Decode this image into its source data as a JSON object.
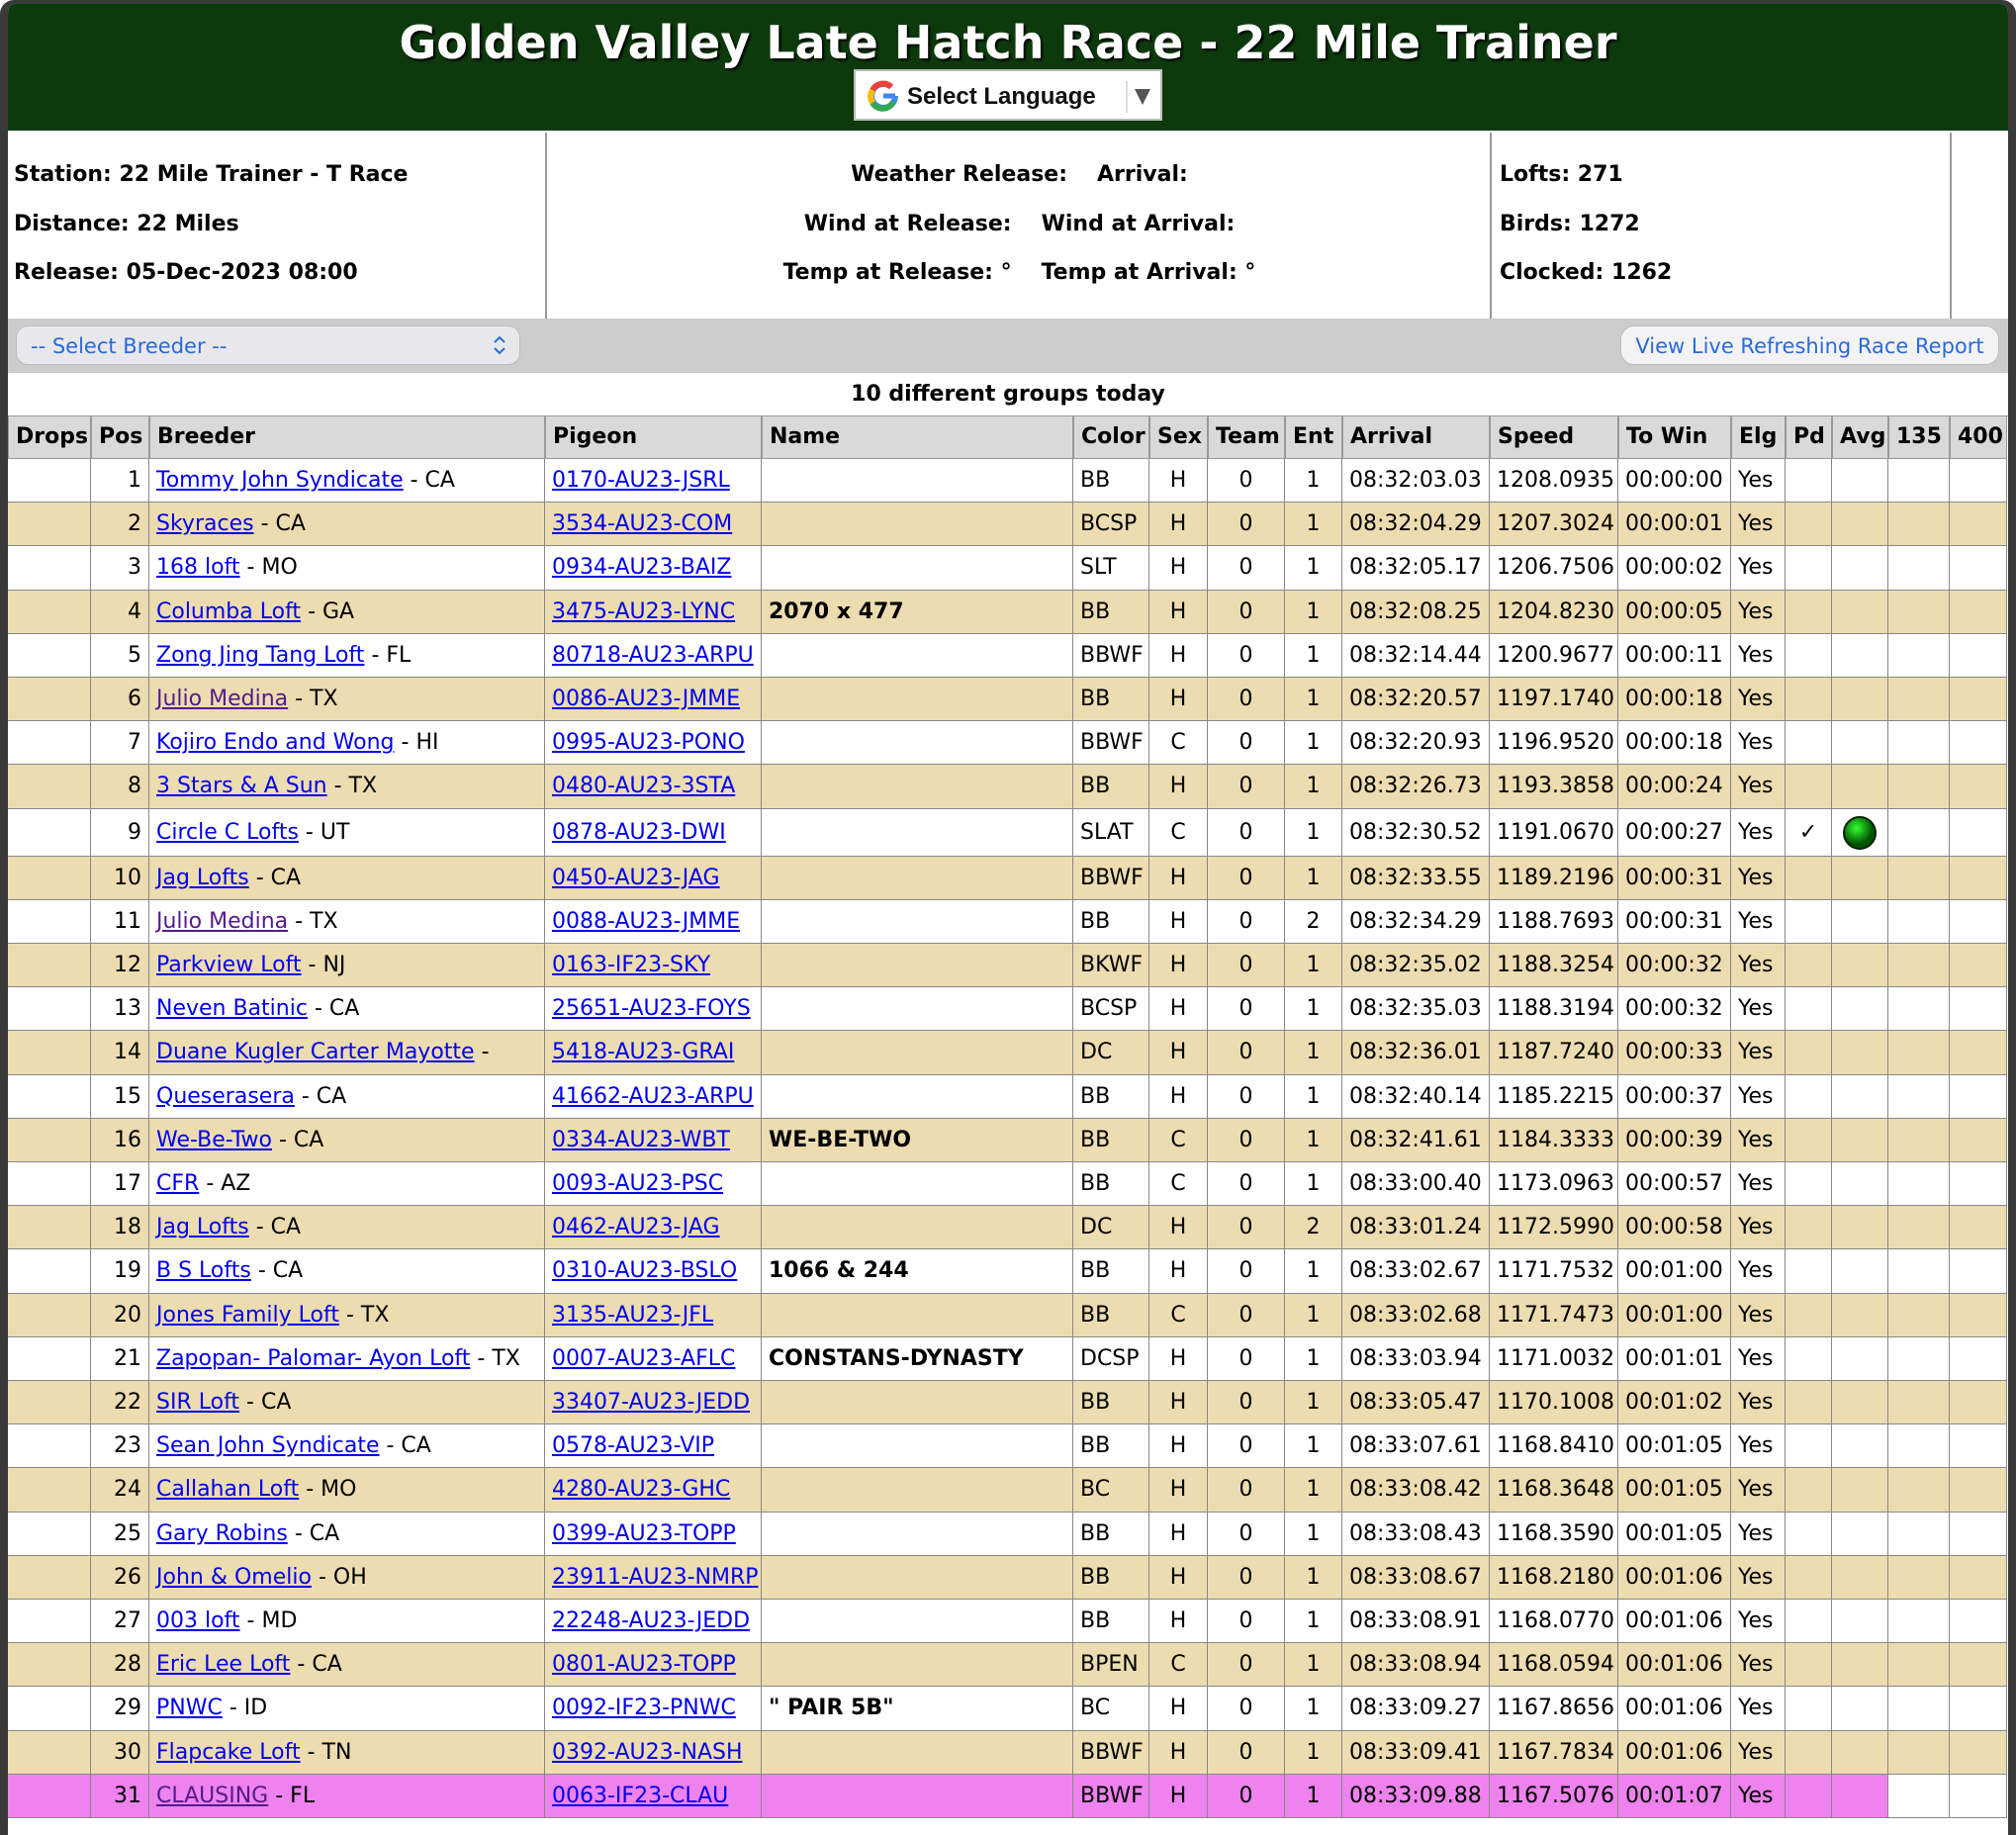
{
  "header": {
    "title": "Golden Valley Late Hatch Race - 22 Mile Trainer",
    "language_button": "Select Language"
  },
  "info": {
    "left": [
      "Station: 22 Mile Trainer - T Race",
      "Distance: 22 Miles",
      "Release: 05-Dec-2023 08:00"
    ],
    "middle": [
      [
        "Weather Release:",
        "Arrival:"
      ],
      [
        "Wind at Release:",
        "Wind at Arrival:"
      ],
      [
        "Temp at Release: °",
        "Temp at Arrival: °"
      ]
    ],
    "right": [
      "Lofts: 271",
      "Birds: 1272",
      "Clocked: 1262"
    ]
  },
  "controls": {
    "breeder_select": "-- Select Breeder --",
    "live_report_button": "View Live Refreshing Race Report"
  },
  "table": {
    "caption": "10 different groups today",
    "headers": [
      "Drops",
      "Pos",
      "Breeder",
      "Pigeon",
      "Name",
      "Color",
      "Sex",
      "Team",
      "Ent",
      "Arrival",
      "Speed",
      "To Win",
      "Elg",
      "Pd",
      "Avg",
      "135",
      "400"
    ],
    "rows": [
      {
        "pos": 1,
        "breeder": "Tommy John Syndicate",
        "state": "- CA",
        "pigeon": "0170-AU23-JSRL",
        "color": "BB",
        "sex": "H",
        "team": "0",
        "ent": "1",
        "arrival": "08:32:03.03",
        "speed": "1208.0935",
        "to_win": "00:00:00",
        "elg": "Yes"
      },
      {
        "pos": 2,
        "breeder": "Skyraces",
        "state": "- CA",
        "pigeon": "3534-AU23-COM",
        "color": "BCSP",
        "sex": "H",
        "team": "0",
        "ent": "1",
        "arrival": "08:32:04.29",
        "speed": "1207.3024",
        "to_win": "00:00:01",
        "elg": "Yes"
      },
      {
        "pos": 3,
        "breeder": "168 loft",
        "state": "- MO",
        "pigeon": "0934-AU23-BAIZ",
        "color": "SLT",
        "sex": "H",
        "team": "0",
        "ent": "1",
        "arrival": "08:32:05.17",
        "speed": "1206.7506",
        "to_win": "00:00:02",
        "elg": "Yes"
      },
      {
        "pos": 4,
        "breeder": "Columba Loft",
        "state": "- GA",
        "pigeon": "3475-AU23-LYNC",
        "name": "2070 x 477",
        "color": "BB",
        "sex": "H",
        "team": "0",
        "ent": "1",
        "arrival": "08:32:08.25",
        "speed": "1204.8230",
        "to_win": "00:00:05",
        "elg": "Yes"
      },
      {
        "pos": 5,
        "breeder": "Zong Jing Tang Loft",
        "state": "- FL",
        "pigeon": "80718-AU23-ARPU",
        "color": "BBWF",
        "sex": "H",
        "team": "0",
        "ent": "1",
        "arrival": "08:32:14.44",
        "speed": "1200.9677",
        "to_win": "00:00:11",
        "elg": "Yes"
      },
      {
        "pos": 6,
        "breeder": "Julio Medina",
        "visited": true,
        "state": "- TX",
        "pigeon": "0086-AU23-JMME",
        "color": "BB",
        "sex": "H",
        "team": "0",
        "ent": "1",
        "arrival": "08:32:20.57",
        "speed": "1197.1740",
        "to_win": "00:00:18",
        "elg": "Yes"
      },
      {
        "pos": 7,
        "breeder": "Kojiro Endo and Wong",
        "state": "- HI",
        "pigeon": "0995-AU23-PONO",
        "color": "BBWF",
        "sex": "C",
        "team": "0",
        "ent": "1",
        "arrival": "08:32:20.93",
        "speed": "1196.9520",
        "to_win": "00:00:18",
        "elg": "Yes"
      },
      {
        "pos": 8,
        "breeder": "3 Stars & A Sun",
        "state": "- TX",
        "pigeon": "0480-AU23-3STA",
        "color": "BB",
        "sex": "H",
        "team": "0",
        "ent": "1",
        "arrival": "08:32:26.73",
        "speed": "1193.3858",
        "to_win": "00:00:24",
        "elg": "Yes"
      },
      {
        "pos": 9,
        "breeder": "Circle C Lofts",
        "state": "- UT",
        "pigeon": "0878-AU23-DWI",
        "color": "SLAT",
        "sex": "C",
        "team": "0",
        "ent": "1",
        "arrival": "08:32:30.52",
        "speed": "1191.0670",
        "to_win": "00:00:27",
        "elg": "Yes",
        "pd": "✓",
        "avg_marker": true
      },
      {
        "pos": 10,
        "breeder": "Jag Lofts",
        "state": "- CA",
        "pigeon": "0450-AU23-JAG",
        "color": "BBWF",
        "sex": "H",
        "team": "0",
        "ent": "1",
        "arrival": "08:32:33.55",
        "speed": "1189.2196",
        "to_win": "00:00:31",
        "elg": "Yes"
      },
      {
        "pos": 11,
        "breeder": "Julio Medina",
        "visited": true,
        "state": "- TX",
        "pigeon": "0088-AU23-JMME",
        "color": "BB",
        "sex": "H",
        "team": "0",
        "ent": "2",
        "arrival": "08:32:34.29",
        "speed": "1188.7693",
        "to_win": "00:00:31",
        "elg": "Yes"
      },
      {
        "pos": 12,
        "breeder": "Parkview Loft",
        "state": "- NJ",
        "pigeon": "0163-IF23-SKY",
        "color": "BKWF",
        "sex": "H",
        "team": "0",
        "ent": "1",
        "arrival": "08:32:35.02",
        "speed": "1188.3254",
        "to_win": "00:00:32",
        "elg": "Yes"
      },
      {
        "pos": 13,
        "breeder": "Neven Batinic",
        "state": "- CA",
        "pigeon": "25651-AU23-FOYS",
        "color": "BCSP",
        "sex": "H",
        "team": "0",
        "ent": "1",
        "arrival": "08:32:35.03",
        "speed": "1188.3194",
        "to_win": "00:00:32",
        "elg": "Yes"
      },
      {
        "pos": 14,
        "breeder": "Duane Kugler Carter Mayotte",
        "state": "-",
        "pigeon": "5418-AU23-GRAI",
        "color": "DC",
        "sex": "H",
        "team": "0",
        "ent": "1",
        "arrival": "08:32:36.01",
        "speed": "1187.7240",
        "to_win": "00:00:33",
        "elg": "Yes"
      },
      {
        "pos": 15,
        "breeder": "Queserasera",
        "state": "- CA",
        "pigeon": "41662-AU23-ARPU",
        "color": "BB",
        "sex": "H",
        "team": "0",
        "ent": "1",
        "arrival": "08:32:40.14",
        "speed": "1185.2215",
        "to_win": "00:00:37",
        "elg": "Yes"
      },
      {
        "pos": 16,
        "breeder": "We-Be-Two",
        "state": "- CA",
        "pigeon": "0334-AU23-WBT",
        "name": "WE-BE-TWO",
        "color": "BB",
        "sex": "C",
        "team": "0",
        "ent": "1",
        "arrival": "08:32:41.61",
        "speed": "1184.3333",
        "to_win": "00:00:39",
        "elg": "Yes"
      },
      {
        "pos": 17,
        "breeder": "CFR",
        "state": "- AZ",
        "pigeon": "0093-AU23-PSC",
        "color": "BB",
        "sex": "C",
        "team": "0",
        "ent": "1",
        "arrival": "08:33:00.40",
        "speed": "1173.0963",
        "to_win": "00:00:57",
        "elg": "Yes"
      },
      {
        "pos": 18,
        "breeder": "Jag Lofts",
        "state": "- CA",
        "pigeon": "0462-AU23-JAG",
        "color": "DC",
        "sex": "H",
        "team": "0",
        "ent": "2",
        "arrival": "08:33:01.24",
        "speed": "1172.5990",
        "to_win": "00:00:58",
        "elg": "Yes"
      },
      {
        "pos": 19,
        "breeder": "B S Lofts",
        "state": "- CA",
        "pigeon": "0310-AU23-BSLO",
        "name": "1066 & 244",
        "color": "BB",
        "sex": "H",
        "team": "0",
        "ent": "1",
        "arrival": "08:33:02.67",
        "speed": "1171.7532",
        "to_win": "00:01:00",
        "elg": "Yes"
      },
      {
        "pos": 20,
        "breeder": "Jones Family Loft",
        "state": "- TX",
        "pigeon": "3135-AU23-JFL",
        "color": "BB",
        "sex": "C",
        "team": "0",
        "ent": "1",
        "arrival": "08:33:02.68",
        "speed": "1171.7473",
        "to_win": "00:01:00",
        "elg": "Yes"
      },
      {
        "pos": 21,
        "breeder": "Zapopan- Palomar- Ayon Loft",
        "state": "- TX",
        "pigeon": "0007-AU23-AFLC",
        "name": "CONSTANS-DYNASTY",
        "color": "DCSP",
        "sex": "H",
        "team": "0",
        "ent": "1",
        "arrival": "08:33:03.94",
        "speed": "1171.0032",
        "to_win": "00:01:01",
        "elg": "Yes"
      },
      {
        "pos": 22,
        "breeder": "SIR Loft",
        "state": "- CA",
        "pigeon": "33407-AU23-JEDD",
        "color": "BB",
        "sex": "H",
        "team": "0",
        "ent": "1",
        "arrival": "08:33:05.47",
        "speed": "1170.1008",
        "to_win": "00:01:02",
        "elg": "Yes"
      },
      {
        "pos": 23,
        "breeder": "Sean John Syndicate",
        "state": "- CA",
        "pigeon": "0578-AU23-VIP",
        "color": "BB",
        "sex": "H",
        "team": "0",
        "ent": "1",
        "arrival": "08:33:07.61",
        "speed": "1168.8410",
        "to_win": "00:01:05",
        "elg": "Yes"
      },
      {
        "pos": 24,
        "breeder": "Callahan Loft",
        "state": "- MO",
        "pigeon": "4280-AU23-GHC",
        "color": "BC",
        "sex": "H",
        "team": "0",
        "ent": "1",
        "arrival": "08:33:08.42",
        "speed": "1168.3648",
        "to_win": "00:01:05",
        "elg": "Yes"
      },
      {
        "pos": 25,
        "breeder": "Gary Robins",
        "state": "- CA",
        "pigeon": "0399-AU23-TOPP",
        "color": "BB",
        "sex": "H",
        "team": "0",
        "ent": "1",
        "arrival": "08:33:08.43",
        "speed": "1168.3590",
        "to_win": "00:01:05",
        "elg": "Yes"
      },
      {
        "pos": 26,
        "breeder": "John & Omelio",
        "state": "- OH",
        "pigeon": "23911-AU23-NMRP",
        "color": "BB",
        "sex": "H",
        "team": "0",
        "ent": "1",
        "arrival": "08:33:08.67",
        "speed": "1168.2180",
        "to_win": "00:01:06",
        "elg": "Yes"
      },
      {
        "pos": 27,
        "breeder": "003 loft",
        "state": "- MD",
        "pigeon": "22248-AU23-JEDD",
        "color": "BB",
        "sex": "H",
        "team": "0",
        "ent": "1",
        "arrival": "08:33:08.91",
        "speed": "1168.0770",
        "to_win": "00:01:06",
        "elg": "Yes"
      },
      {
        "pos": 28,
        "breeder": "Eric Lee Loft",
        "state": "- CA",
        "pigeon": "0801-AU23-TOPP",
        "color": "BPEN",
        "sex": "C",
        "team": "0",
        "ent": "1",
        "arrival": "08:33:08.94",
        "speed": "1168.0594",
        "to_win": "00:01:06",
        "elg": "Yes"
      },
      {
        "pos": 29,
        "breeder": "PNWC",
        "state": "- ID",
        "pigeon": "0092-IF23-PNWC",
        "name": "\" PAIR 5B\"",
        "color": "BC",
        "sex": "H",
        "team": "0",
        "ent": "1",
        "arrival": "08:33:09.27",
        "speed": "1167.8656",
        "to_win": "00:01:06",
        "elg": "Yes"
      },
      {
        "pos": 30,
        "breeder": "Flapcake Loft",
        "state": "- TN",
        "pigeon": "0392-AU23-NASH",
        "color": "BBWF",
        "sex": "H",
        "team": "0",
        "ent": "1",
        "arrival": "08:33:09.41",
        "speed": "1167.7834",
        "to_win": "00:01:06",
        "elg": "Yes"
      },
      {
        "pos": 31,
        "breeder": "CLAUSING",
        "visited": true,
        "state": "- FL",
        "pigeon": "0063-IF23-CLAU",
        "color": "BBWF",
        "sex": "H",
        "team": "0",
        "ent": "1",
        "arrival": "08:33:09.88",
        "speed": "1167.5076",
        "to_win": "00:01:07",
        "elg": "Yes",
        "highlight_color": "#ee82ee"
      }
    ]
  }
}
